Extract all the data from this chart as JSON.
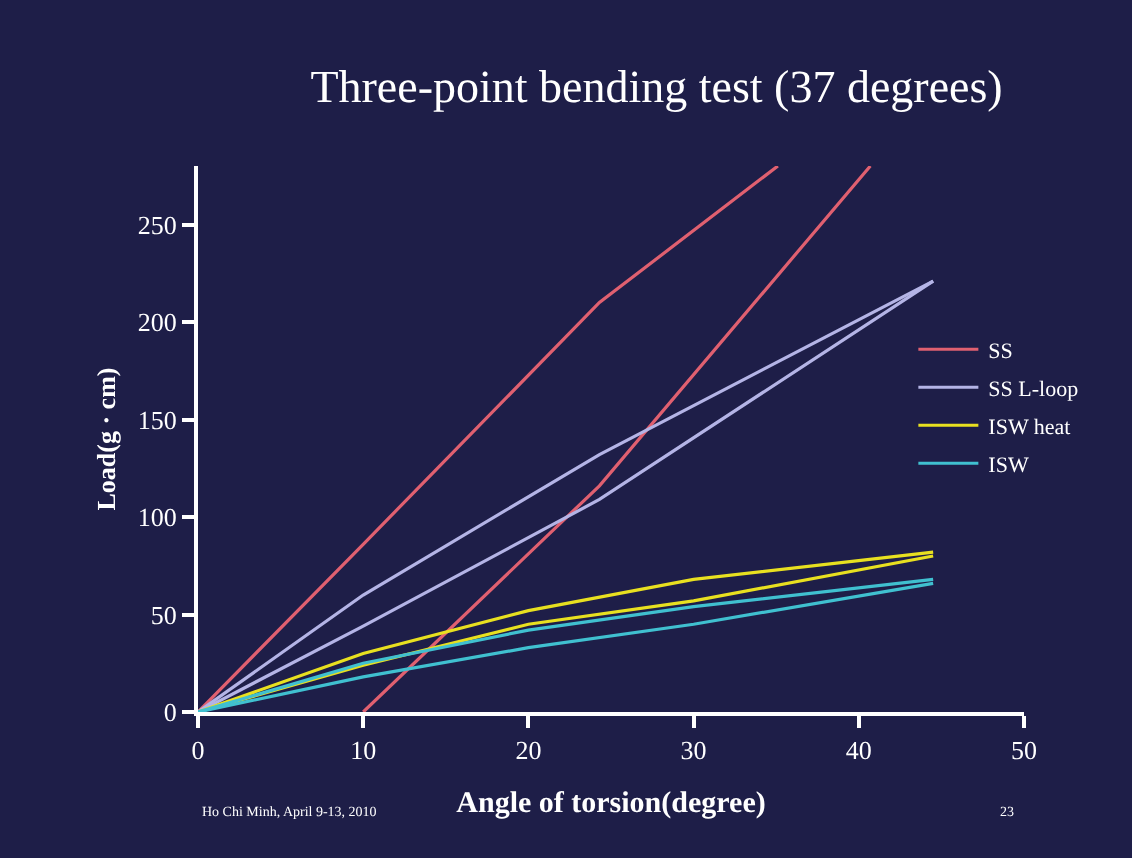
{
  "chart_data": {
    "type": "line",
    "title": "Three-point bending test (37 degrees)",
    "xlabel": "Angle of torsion(degree)",
    "ylabel": "Load(g · cm)",
    "xlim": [
      0,
      50
    ],
    "xticks": [
      0,
      10,
      20,
      30,
      40,
      50
    ],
    "ylim": [
      0,
      280
    ],
    "yticks": [
      0,
      50,
      100,
      150,
      200,
      250
    ],
    "grid": false,
    "legend": "right",
    "marker": "none",
    "line_style": "solid",
    "series": [
      {
        "name": "SS",
        "color": "#e06070",
        "x": [
          0,
          10,
          24.3,
          35.1
        ],
        "values": [
          0,
          86,
          210,
          280
        ]
      },
      {
        "color": "#e06070",
        "x": [
          10,
          24.3,
          40.7
        ],
        "values": [
          0,
          116,
          280
        ]
      },
      {
        "name": "SS L-loop",
        "color": "#b4b4e6",
        "x": [
          0,
          10,
          24.3,
          44.5
        ],
        "values": [
          0,
          60,
          132,
          221
        ]
      },
      {
        "color": "#b4b4e6",
        "x": [
          0,
          10,
          24.3,
          44.5
        ],
        "values": [
          0,
          44,
          109,
          221
        ]
      },
      {
        "name": "ISW heat",
        "color": "#e8e020",
        "x": [
          0,
          10,
          20,
          30,
          44.5
        ],
        "values": [
          0,
          30,
          52,
          68,
          82
        ]
      },
      {
        "color": "#e8e020",
        "x": [
          0,
          10,
          20,
          30,
          44.5
        ],
        "values": [
          0,
          24,
          45,
          57,
          80
        ]
      },
      {
        "name": "ISW",
        "color": "#40c0d0",
        "x": [
          0,
          10,
          20,
          30,
          44.5
        ],
        "values": [
          0,
          25,
          42,
          54,
          68
        ]
      },
      {
        "color": "#40c0d0",
        "x": [
          0,
          10,
          20,
          30,
          44.5
        ],
        "values": [
          0,
          18,
          33,
          45,
          66
        ]
      }
    ],
    "annotations": [
      "Ho Chi Minh, April 9-13, 2010",
      "23"
    ]
  }
}
